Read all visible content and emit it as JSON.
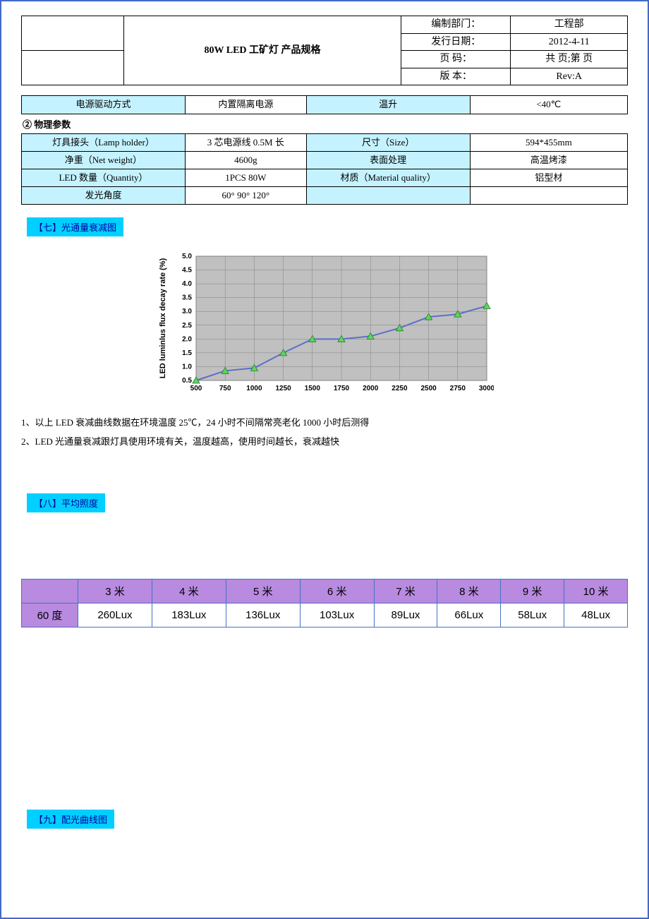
{
  "header": {
    "title": "80W LED 工矿灯 产品规格",
    "rows": [
      {
        "label": "编制部门：",
        "value": "工程部"
      },
      {
        "label": "发行日期：",
        "value": "2012-4-11"
      },
      {
        "label": "页    码：",
        "value": "共  页;第  页"
      },
      {
        "label": "版    本：",
        "value": "Rev:A"
      }
    ]
  },
  "spec_row": {
    "c1_label": "电源驱动方式",
    "c1_value": "内置隔离电源",
    "c2_label": "温升",
    "c2_value": "<40℃"
  },
  "physical_section_label": "②  物理参数",
  "physical_rows": [
    {
      "l1": "灯具接头（Lamp holder）",
      "v1": "3 芯电源线 0.5M 长",
      "l2": "尺寸（Size）",
      "v2": "594*455mm"
    },
    {
      "l1": "净重（Net weight）",
      "v1": "4600g",
      "l2": "表面处理",
      "v2": "高温烤漆"
    },
    {
      "l1": "LED 数量（Quantity）",
      "v1": "1PCS 80W",
      "l2": "材质（Material quality）",
      "v2": "铝型材"
    },
    {
      "l1": "发光角度",
      "v1": "60°  90°  120°",
      "l2": "",
      "v2": ""
    }
  ],
  "section7": {
    "title": "【七】光通量衰减图"
  },
  "decay_chart": {
    "type": "line",
    "y_label": "LED luminlus flux decay rate (%)",
    "y_label_fontsize": 11,
    "x_ticks": [
      500,
      750,
      1000,
      1250,
      1500,
      1750,
      2000,
      2250,
      2500,
      2750,
      3000
    ],
    "y_ticks": [
      0.5,
      1.0,
      1.5,
      2.0,
      2.5,
      3.0,
      3.5,
      4.0,
      4.5,
      5.0
    ],
    "xlim": [
      500,
      3000
    ],
    "ylim": [
      0.5,
      5.0
    ],
    "points": [
      {
        "x": 500,
        "y": 0.5
      },
      {
        "x": 750,
        "y": 0.85
      },
      {
        "x": 1000,
        "y": 0.95
      },
      {
        "x": 1250,
        "y": 1.5
      },
      {
        "x": 1500,
        "y": 2.0
      },
      {
        "x": 1750,
        "y": 2.0
      },
      {
        "x": 2000,
        "y": 2.1
      },
      {
        "x": 2250,
        "y": 2.4
      },
      {
        "x": 2500,
        "y": 2.8
      },
      {
        "x": 2750,
        "y": 2.9
      },
      {
        "x": 3000,
        "y": 3.2
      }
    ],
    "line_color": "#5b6fc7",
    "marker_fill": "#5bd75b",
    "marker_stroke": "#2a7a2a",
    "marker_size": 5,
    "grid_color": "#808080",
    "plot_bg": "#c0c0c0",
    "border_color": "#808080",
    "tick_font_size": 10,
    "tick_font_weight": "bold",
    "line_width": 2
  },
  "notes": [
    "1、以上 LED 衰减曲线数据在环境温度 25℃，24 小时不间隔常亮老化 1000 小时后测得",
    "2、LED 光通量衰减跟灯具使用环境有关，温度越高，使用时间越长，衰减越快"
  ],
  "section8": {
    "title": "【八】平均照度"
  },
  "lux_table": {
    "columns": [
      "",
      "3 米",
      "4 米",
      "5 米",
      "6 米",
      "7 米",
      "8 米",
      "9 米",
      "10 米"
    ],
    "row_label": "60 度",
    "row_values": [
      "260Lux",
      "183Lux",
      "136Lux",
      "103Lux",
      "89Lux",
      "66Lux",
      "58Lux",
      "48Lux"
    ],
    "header_bg": "#b88ae0",
    "rowlabel_bg": "#b88ae0",
    "border_color": "#4472c4"
  },
  "section9": {
    "title": "【九】配光曲线图"
  }
}
